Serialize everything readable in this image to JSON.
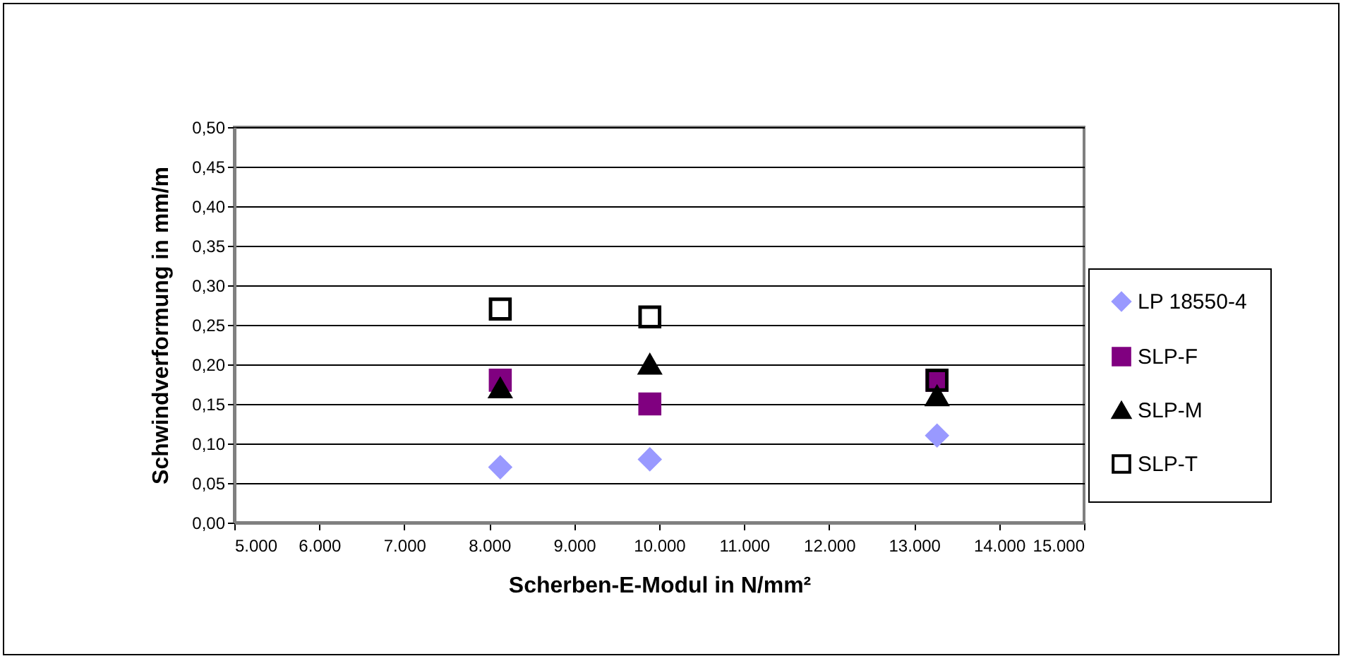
{
  "chart_data": {
    "type": "scatter",
    "xlabel": "Scherben-E-Modul in N/mm²",
    "ylabel": "Schwindverformung in mm/m",
    "x": [
      8130,
      9890,
      13270
    ],
    "series": [
      {
        "name": "LP 18550-4",
        "color": "#9999ff",
        "marker": "diamond",
        "values": [
          0.07,
          0.08,
          0.11
        ]
      },
      {
        "name": "SLP-F",
        "color": "#800080",
        "marker": "square",
        "values": [
          0.18,
          0.15,
          0.18
        ]
      },
      {
        "name": "SLP-M",
        "color": "#000000",
        "marker": "triangle",
        "values": [
          0.17,
          0.2,
          0.16
        ]
      },
      {
        "name": "SLP-T",
        "color": "#000000",
        "marker": "square-open",
        "values": [
          0.27,
          0.26,
          0.18
        ]
      }
    ],
    "xlim": [
      5000,
      15000
    ],
    "xticks": [
      {
        "value": 5000,
        "label": "5.000"
      },
      {
        "value": 6000,
        "label": "6.000"
      },
      {
        "value": 7000,
        "label": "7.000"
      },
      {
        "value": 8000,
        "label": "8.000"
      },
      {
        "value": 9000,
        "label": "9.000"
      },
      {
        "value": 10000,
        "label": "10.000"
      },
      {
        "value": 11000,
        "label": "11.000"
      },
      {
        "value": 12000,
        "label": "12.000"
      },
      {
        "value": 13000,
        "label": "13.000"
      },
      {
        "value": 14000,
        "label": "14.000"
      },
      {
        "value": 15000,
        "label": "15.000"
      }
    ],
    "ylim": [
      0,
      0.5
    ],
    "yticks": [
      {
        "value": 0,
        "label": "0,00"
      },
      {
        "value": 0.05,
        "label": "0,05"
      },
      {
        "value": 0.1,
        "label": "0,10"
      },
      {
        "value": 0.15,
        "label": "0,15"
      },
      {
        "value": 0.2,
        "label": "0,20"
      },
      {
        "value": 0.25,
        "label": "0,25"
      },
      {
        "value": 0.3,
        "label": "0,30"
      },
      {
        "value": 0.35,
        "label": "0,35"
      },
      {
        "value": 0.4,
        "label": "0,40"
      },
      {
        "value": 0.45,
        "label": "0,45"
      },
      {
        "value": 0.5,
        "label": "0,50"
      }
    ],
    "grid": "y",
    "legend": "right"
  }
}
